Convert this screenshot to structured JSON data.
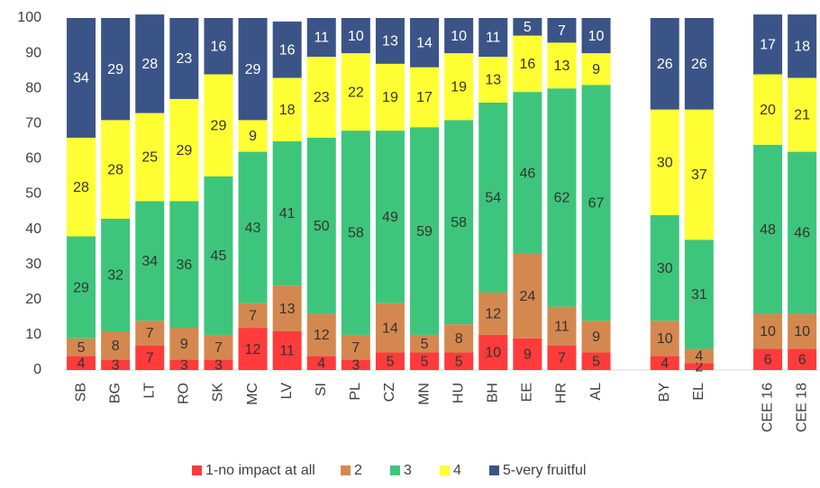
{
  "chart_data": {
    "type": "stacked_bar",
    "categories": [
      "SB",
      "BG",
      "LT",
      "RO",
      "SK",
      "MC",
      "LV",
      "SI",
      "PL",
      "CZ",
      "MN",
      "HU",
      "BH",
      "EE",
      "HR",
      "AL",
      null,
      "BY",
      "EL",
      null,
      "CEE 16",
      "CEE 18"
    ],
    "series": [
      {
        "name": "1-no impact at all",
        "color": "#ff3b3b",
        "label_color": "#333333",
        "values": [
          4,
          3,
          7,
          3,
          3,
          12,
          11,
          4,
          3,
          5,
          5,
          5,
          10,
          9,
          7,
          5,
          null,
          4,
          2,
          null,
          6,
          6
        ]
      },
      {
        "name": "2",
        "color": "#d4884f",
        "label_color": "#333333",
        "values": [
          5,
          8,
          7,
          9,
          7,
          7,
          13,
          12,
          7,
          14,
          5,
          8,
          12,
          24,
          11,
          9,
          null,
          10,
          4,
          null,
          10,
          10
        ]
      },
      {
        "name": "3",
        "color": "#3ec57c",
        "label_color": "#333333",
        "values": [
          29,
          32,
          34,
          36,
          45,
          43,
          41,
          50,
          58,
          49,
          59,
          58,
          54,
          46,
          62,
          67,
          null,
          30,
          31,
          null,
          48,
          46
        ]
      },
      {
        "name": "4",
        "color": "#ffff33",
        "label_color": "#333333",
        "values": [
          28,
          28,
          25,
          29,
          29,
          9,
          18,
          23,
          22,
          19,
          17,
          19,
          13,
          16,
          13,
          9,
          null,
          30,
          37,
          null,
          20,
          21
        ]
      },
      {
        "name": "5-very fruitful",
        "color": "#3b5487",
        "label_color": "#ffffff",
        "values": [
          34,
          29,
          28,
          23,
          16,
          29,
          16,
          11,
          10,
          13,
          14,
          10,
          11,
          5,
          7,
          10,
          null,
          26,
          26,
          null,
          17,
          18
        ]
      }
    ],
    "ylim": [
      0,
      100
    ],
    "yticks": [
      0,
      10,
      20,
      30,
      40,
      50,
      60,
      70,
      80,
      90,
      100
    ],
    "legend": "bottom"
  }
}
